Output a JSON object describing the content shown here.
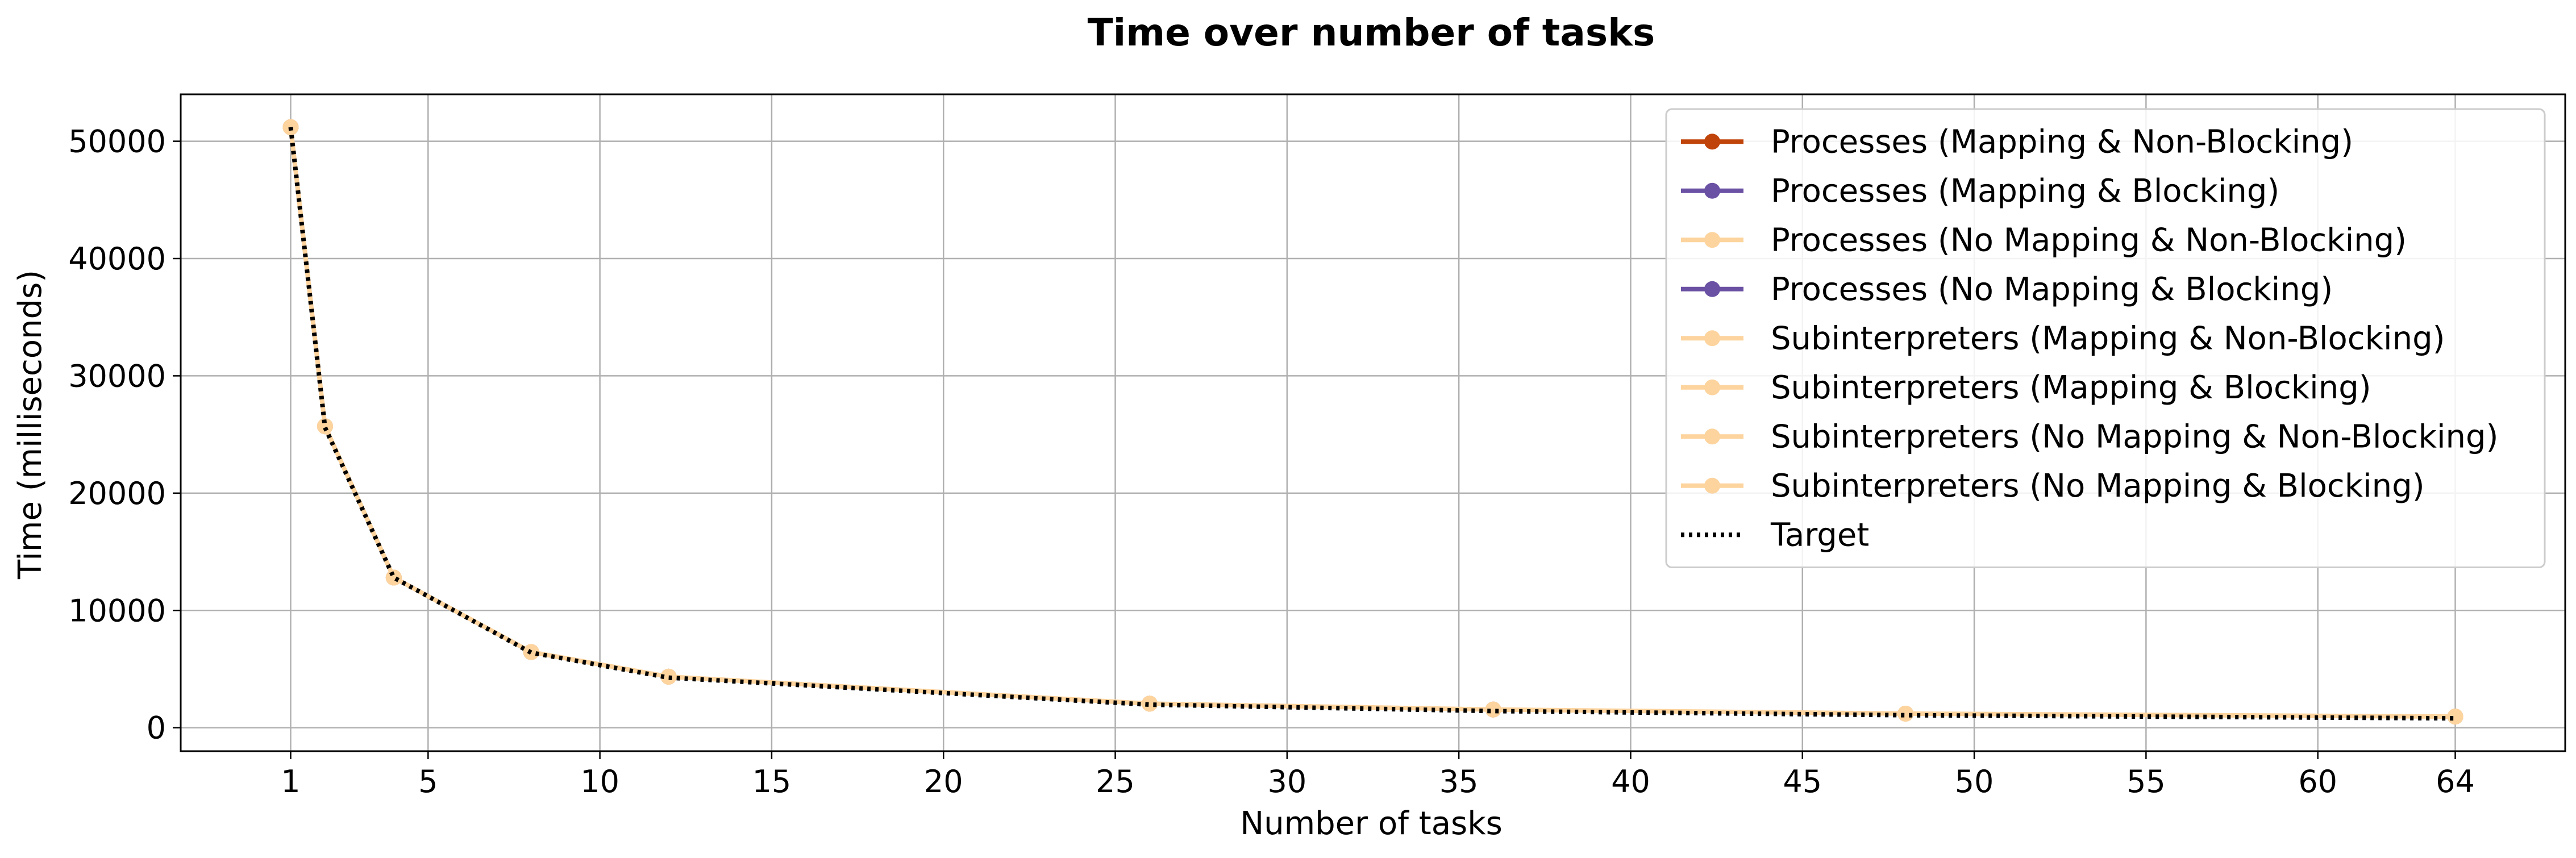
{
  "chart_data": {
    "type": "line",
    "title": "Time over number of tasks",
    "xlabel": "Number of tasks",
    "ylabel": "Time (milliseconds)",
    "xlim": [
      -2.2,
      67.2
    ],
    "ylim": [
      -2000,
      54000
    ],
    "x_ticks": [
      1,
      5,
      10,
      15,
      20,
      25,
      30,
      35,
      40,
      45,
      50,
      55,
      60,
      64
    ],
    "y_ticks": [
      0,
      10000,
      20000,
      30000,
      40000,
      50000
    ],
    "grid": true,
    "legend_position": "top-right",
    "series": [
      {
        "name": "Processes (Mapping & Non-Blocking)",
        "color": "#c0440a",
        "style": "solid-marker",
        "show_line": false,
        "x": [
          1,
          2,
          4,
          8,
          12,
          26,
          36,
          48,
          64
        ],
        "y": [
          51200,
          25700,
          12800,
          6450,
          4350,
          2050,
          1550,
          1200,
          950
        ]
      },
      {
        "name": "Processes (Mapping & Blocking)",
        "color": "#6a51a3",
        "style": "solid-marker",
        "show_line": false,
        "x": [
          1,
          2,
          4,
          8,
          12,
          26,
          36,
          48,
          64
        ],
        "y": [
          51200,
          25700,
          12800,
          6450,
          4350,
          2050,
          1550,
          1200,
          950
        ]
      },
      {
        "name": "Processes (No Mapping & Non-Blocking)",
        "color": "#fdd49e",
        "style": "solid-marker",
        "show_line": false,
        "x": [
          1,
          2,
          4,
          8,
          12,
          26,
          36,
          48,
          64
        ],
        "y": [
          51200,
          25700,
          12800,
          6450,
          4350,
          2050,
          1550,
          1200,
          950
        ]
      },
      {
        "name": "Processes (No Mapping & Blocking)",
        "color": "#6a51a3",
        "style": "solid-marker",
        "show_line": false,
        "x": [
          1,
          2,
          4,
          8,
          12,
          26,
          36,
          48,
          64
        ],
        "y": [
          51200,
          25700,
          12800,
          6450,
          4350,
          2050,
          1550,
          1200,
          950
        ]
      },
      {
        "name": "Subinterpreters (Mapping & Non-Blocking)",
        "color": "#fdd49e",
        "style": "solid-marker",
        "show_line": false,
        "x": [
          1,
          2,
          4,
          8,
          12,
          26,
          36,
          48,
          64
        ],
        "y": [
          51200,
          25700,
          12800,
          6450,
          4350,
          2050,
          1550,
          1200,
          950
        ]
      },
      {
        "name": "Subinterpreters (Mapping & Blocking)",
        "color": "#fdd49e",
        "style": "solid-marker",
        "show_line": false,
        "x": [
          1,
          2,
          4,
          8,
          12,
          26,
          36,
          48,
          64
        ],
        "y": [
          51200,
          25700,
          12800,
          6450,
          4350,
          2050,
          1550,
          1200,
          950
        ]
      },
      {
        "name": "Subinterpreters (No Mapping & Non-Blocking)",
        "color": "#fdd49e",
        "style": "solid-marker",
        "show_line": false,
        "x": [
          1,
          2,
          4,
          8,
          12,
          26,
          36,
          48,
          64
        ],
        "y": [
          51200,
          25700,
          12800,
          6450,
          4350,
          2050,
          1550,
          1200,
          950
        ]
      },
      {
        "name": "Subinterpreters (No Mapping & Blocking)",
        "color": "#fdd49e",
        "style": "solid-marker",
        "show_line": true,
        "x": [
          1,
          2,
          4,
          8,
          12,
          26,
          36,
          48,
          64
        ],
        "y": [
          51200,
          25700,
          12800,
          6450,
          4350,
          2050,
          1550,
          1200,
          950
        ]
      },
      {
        "name": "Target",
        "color": "#000000",
        "style": "dotted",
        "show_line": true,
        "x": [
          1,
          2,
          4,
          8,
          12,
          26,
          36,
          48,
          64
        ],
        "y": [
          51200,
          25600,
          12800,
          6400,
          4267,
          1969,
          1422,
          1067,
          800
        ]
      }
    ]
  }
}
